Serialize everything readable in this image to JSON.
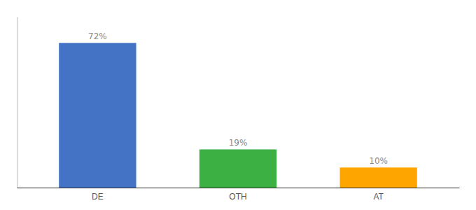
{
  "chart_data": {
    "type": "bar",
    "categories": [
      "DE",
      "OTH",
      "AT"
    ],
    "values": [
      72,
      19,
      10
    ],
    "value_labels": [
      "72%",
      "19%",
      "10%"
    ],
    "colors": [
      "#4472C4",
      "#3CB043",
      "#FFA500"
    ],
    "ylim": [
      0,
      85
    ],
    "data_labels": true,
    "tick_labels": "x"
  }
}
